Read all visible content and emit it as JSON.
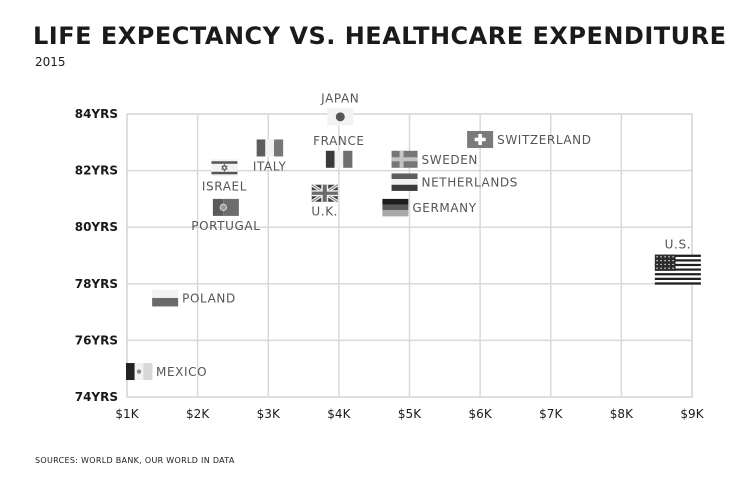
{
  "header": {
    "title": "LIFE EXPECTANCY VS. HEALTHCARE EXPENDITURE",
    "subtitle": "2015"
  },
  "footer": {
    "source": "SOURCES: WORLD BANK, OUR WORLD IN DATA"
  },
  "chart_data": {
    "type": "scatter",
    "title": "LIFE EXPECTANCY VS. HEALTHCARE EXPENDITURE",
    "subtitle": "2015",
    "xlabel": "",
    "ylabel": "",
    "xlim": [
      1000,
      9000
    ],
    "ylim": [
      74,
      84
    ],
    "xticks": [
      1000,
      2000,
      3000,
      4000,
      5000,
      6000,
      7000,
      8000,
      9000
    ],
    "xtick_labels": [
      "$1K",
      "$2K",
      "$3K",
      "$4K",
      "$5K",
      "$6K",
      "$7K",
      "$8K",
      "$9K"
    ],
    "yticks": [
      74,
      76,
      78,
      80,
      82,
      84
    ],
    "ytick_labels": [
      "74YRS",
      "76YRS",
      "78YRS",
      "80YRS",
      "82YRS",
      "84YRS"
    ],
    "grid": true,
    "marker": "country flag",
    "points": [
      {
        "label": "JAPAN",
        "x": 4020,
        "y": 83.9,
        "label_pos": "above",
        "flag": "japan"
      },
      {
        "label": "SWITZERLAND",
        "x": 6000,
        "y": 83.1,
        "label_pos": "right",
        "flag": "switzerland"
      },
      {
        "label": "ITALY",
        "x": 3020,
        "y": 82.8,
        "label_pos": "below",
        "flag": "italy"
      },
      {
        "label": "FRANCE",
        "x": 4000,
        "y": 82.4,
        "label_pos": "above",
        "flag": "france"
      },
      {
        "label": "SWEDEN",
        "x": 4930,
        "y": 82.4,
        "label_pos": "right",
        "flag": "sweden"
      },
      {
        "label": "ISRAEL",
        "x": 2380,
        "y": 82.1,
        "label_pos": "below",
        "flag": "israel"
      },
      {
        "label": "NETHERLANDS",
        "x": 4930,
        "y": 81.6,
        "label_pos": "right",
        "flag": "netherlands"
      },
      {
        "label": "U.K.",
        "x": 3800,
        "y": 81.2,
        "label_pos": "below",
        "flag": "uk"
      },
      {
        "label": "PORTUGAL",
        "x": 2400,
        "y": 80.7,
        "label_pos": "below",
        "flag": "portugal"
      },
      {
        "label": "GERMANY",
        "x": 4800,
        "y": 80.7,
        "label_pos": "right",
        "flag": "germany"
      },
      {
        "label": "U.S.",
        "x": 8800,
        "y": 78.5,
        "label_pos": "above",
        "flag": "usa"
      },
      {
        "label": "POLAND",
        "x": 1540,
        "y": 77.5,
        "label_pos": "right",
        "flag": "poland"
      },
      {
        "label": "MEXICO",
        "x": 1170,
        "y": 74.9,
        "label_pos": "right",
        "flag": "mexico"
      }
    ]
  }
}
